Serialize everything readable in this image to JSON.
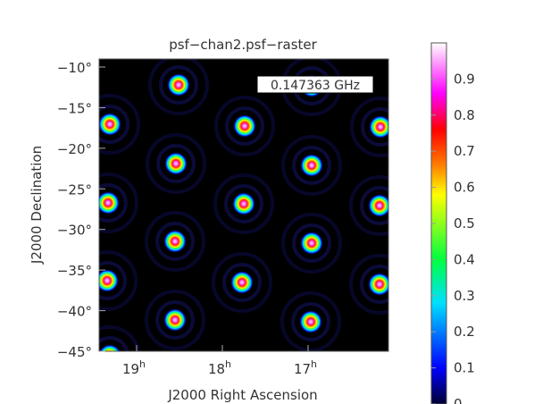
{
  "plot": {
    "title": "psf−chan2.psf−raster",
    "frequency_label": "0.147363 GHz",
    "xlabel": "J2000 Right Ascension",
    "ylabel": "J2000 Declination",
    "y_ticks": [
      {
        "label": "−10°",
        "value": -10
      },
      {
        "label": "−15°",
        "value": -15
      },
      {
        "label": "−20°",
        "value": -20
      },
      {
        "label": "−25°",
        "value": -25
      },
      {
        "label": "−30°",
        "value": -30
      },
      {
        "label": "−35°",
        "value": -35
      },
      {
        "label": "−40°",
        "value": -40
      },
      {
        "label": "−45°",
        "value": -45
      }
    ],
    "x_ticks": [
      {
        "hours": "19",
        "sup": "h"
      },
      {
        "hours": "18",
        "sup": "h"
      },
      {
        "hours": "17",
        "sup": "h"
      }
    ]
  },
  "colorbar": {
    "ticks": [
      "0.9",
      "0.8",
      "0.7",
      "0.6",
      "0.5",
      "0.4",
      "0.3",
      "0.2",
      "0.1",
      "0"
    ],
    "range": [
      0,
      1
    ],
    "colors": [
      "#000033",
      "#0000ff",
      "#00e0ff",
      "#00ff40",
      "#ffff00",
      "#ff8000",
      "#ff0000",
      "#ff00ff",
      "#ff80ff",
      "#ffffff"
    ]
  },
  "image": {
    "background": "#000000",
    "peak_value": 1.0
  }
}
